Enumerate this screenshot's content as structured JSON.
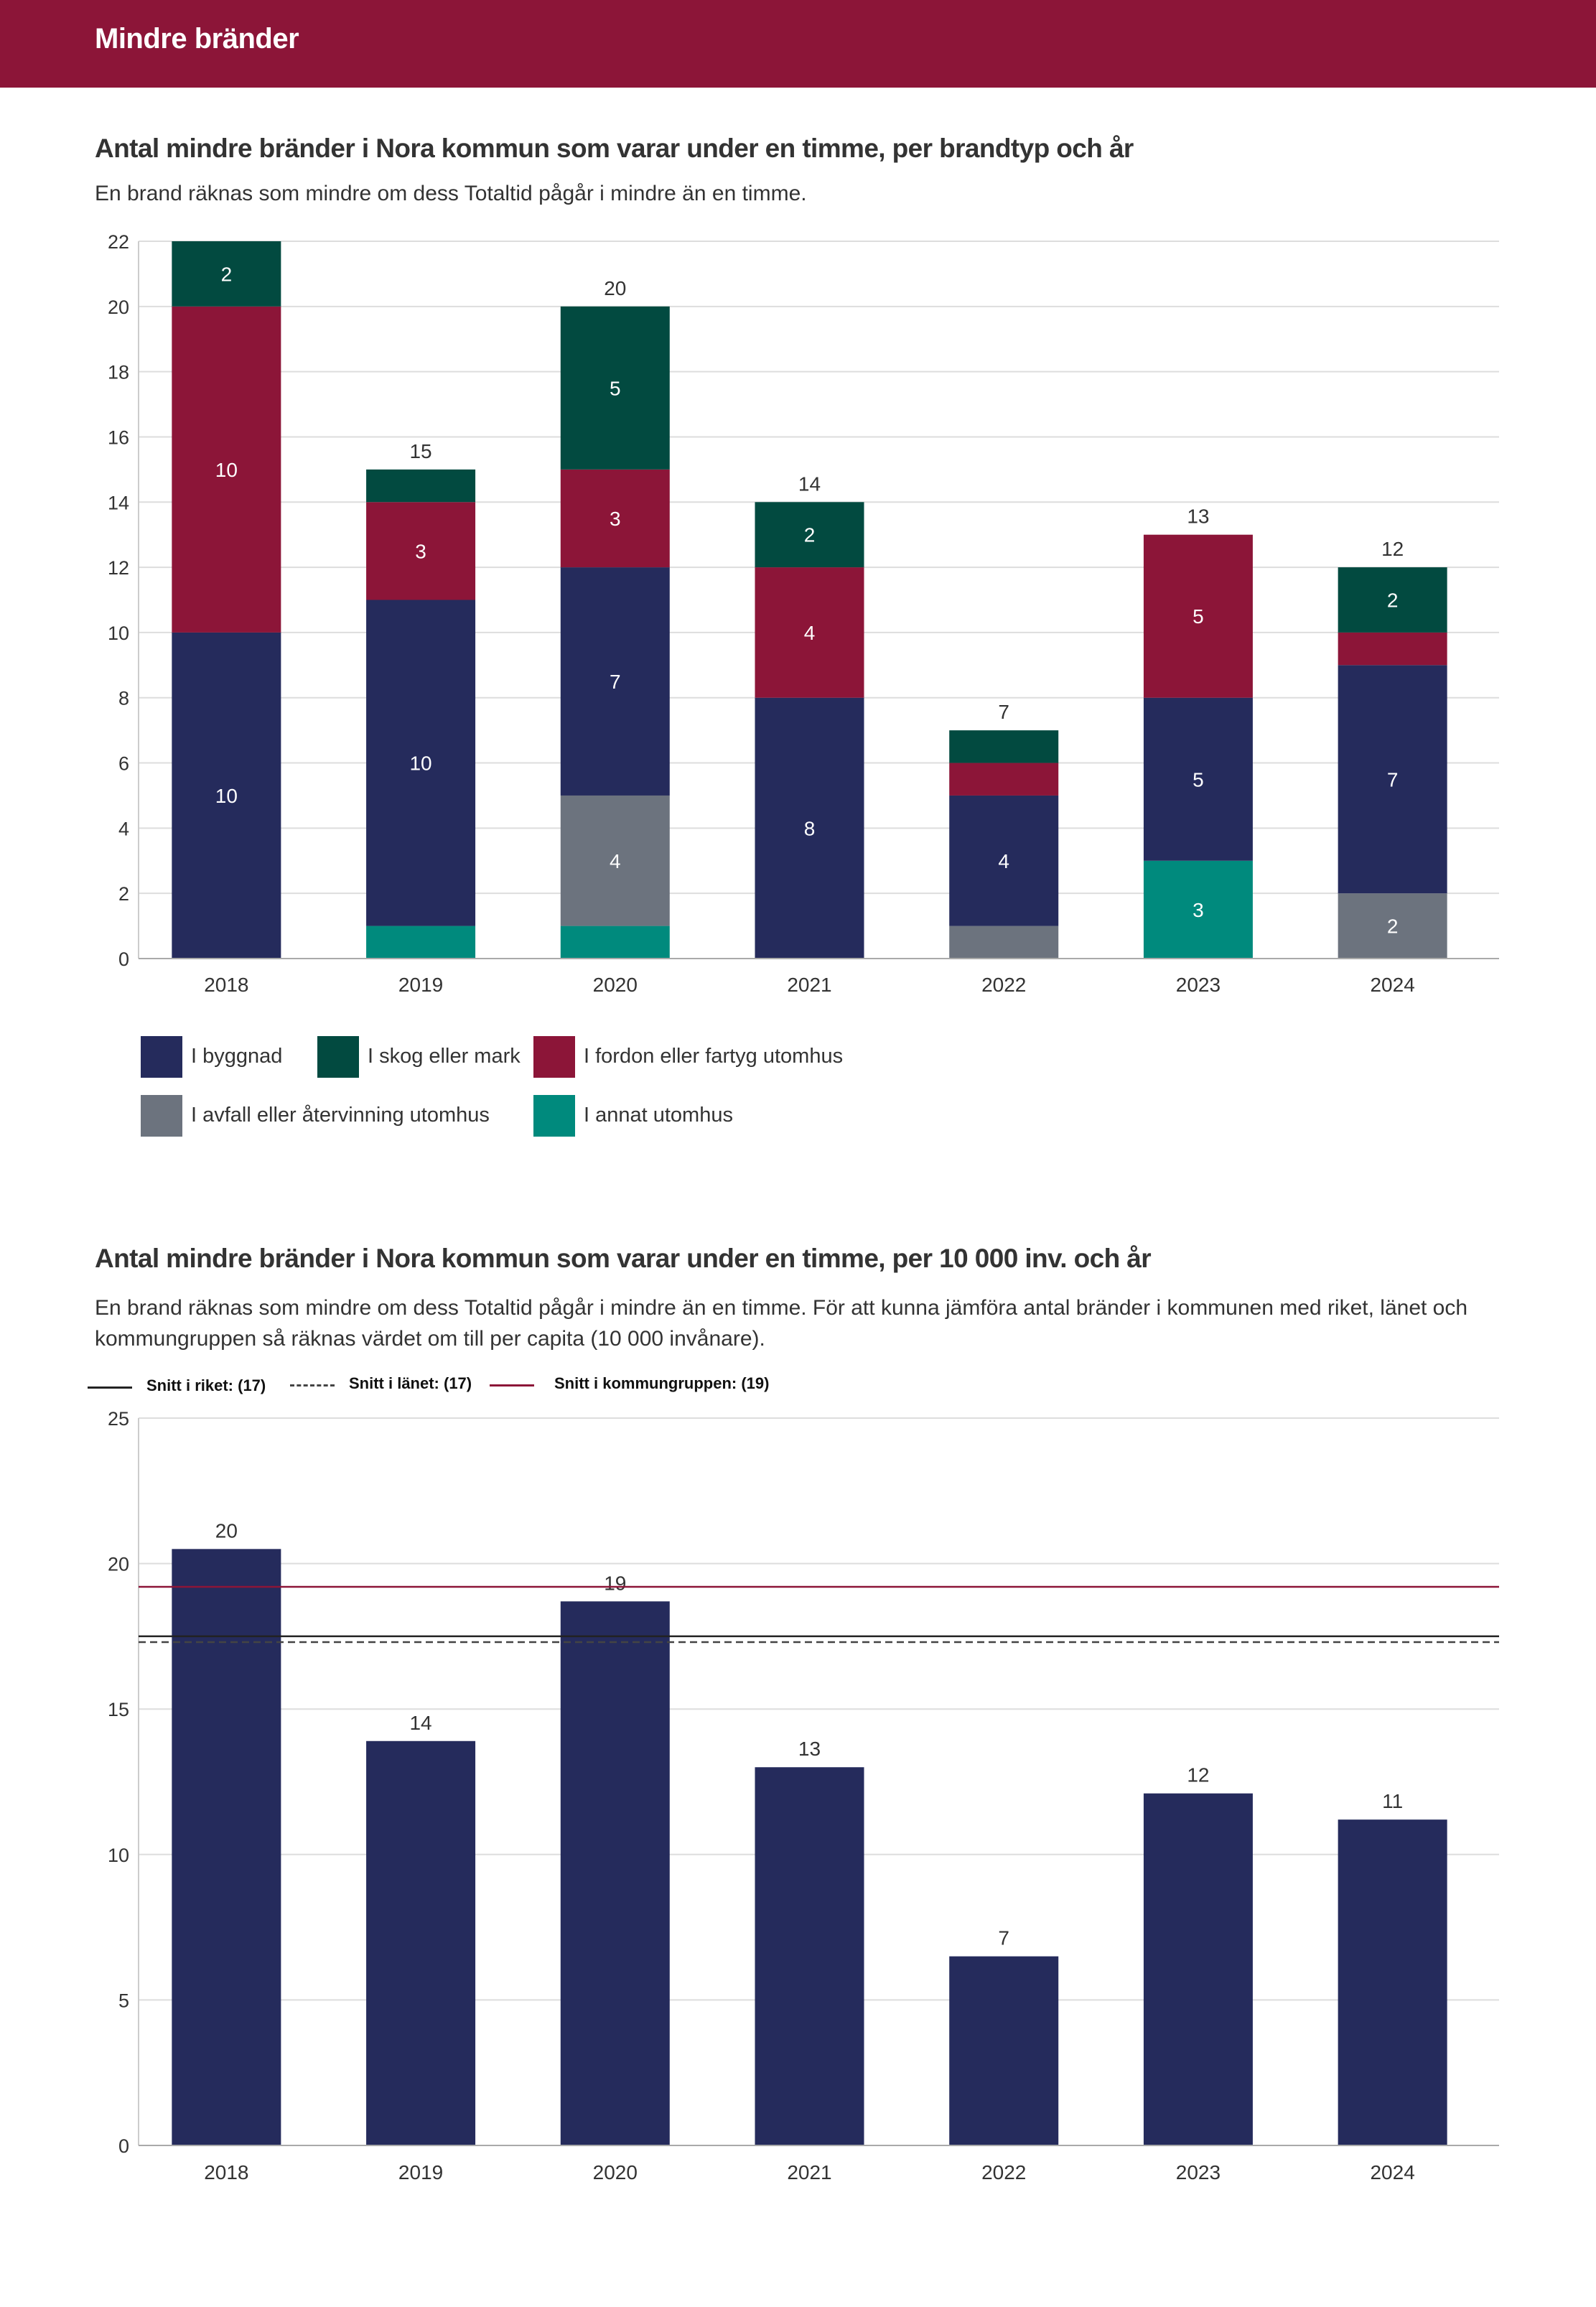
{
  "header": {
    "title": "Mindre bränder"
  },
  "colors": {
    "header_bg": "#8c1538",
    "i_byggnad": "#252b5c",
    "i_skog": "#024a40",
    "i_fordon": "#8c1538",
    "i_avfall": "#6c737e",
    "i_annat": "#008a7d",
    "riket_line": "#222222",
    "lanet_line": "#444444",
    "kommungrupp_line": "#8c1538"
  },
  "chart1": {
    "title": "Antal mindre bränder i Nora kommun som varar under en timme, per brandtyp och år",
    "subtitle": "En brand räknas som mindre om dess Totaltid pågår i mindre än en timme."
  },
  "chart2": {
    "title": "Antal mindre bränder i Nora kommun som varar under en timme, per 10 000 inv. och år",
    "subtitle": "En brand räknas som mindre om dess Totaltid pågår i mindre än en timme. För att kunna jämföra antal bränder i kommunen med riket, länet och kommungruppen så räknas värdet om till per capita (10 000 invånare).",
    "ref_labels": {
      "riket": "Snitt i riket: (17)",
      "lanet": "Snitt i länet: (17)",
      "kommungrupp": "Snitt i kommungruppen: (19)"
    }
  },
  "chart_data": [
    {
      "type": "bar",
      "stacked": true,
      "categories": [
        "2018",
        "2019",
        "2020",
        "2021",
        "2022",
        "2023",
        "2024"
      ],
      "series": [
        {
          "name": "I annat utomhus",
          "color": "#008a7d",
          "values": [
            0,
            1,
            1,
            0,
            0,
            3,
            0
          ],
          "labels": [
            "",
            "",
            "",
            "",
            "",
            "3",
            ""
          ]
        },
        {
          "name": "I avfall eller återvinning utomhus",
          "color": "#6c737e",
          "values": [
            0,
            0,
            4,
            0,
            1,
            0,
            2
          ],
          "labels": [
            "",
            "",
            "4",
            "",
            "",
            "",
            "2"
          ]
        },
        {
          "name": "I byggnad",
          "color": "#252b5c",
          "values": [
            10,
            10,
            7,
            8,
            4,
            5,
            7
          ],
          "labels": [
            "10",
            "10",
            "7",
            "8",
            "4",
            "5",
            "7"
          ]
        },
        {
          "name": "I fordon eller fartyg utomhus",
          "color": "#8c1538",
          "values": [
            10,
            3,
            3,
            4,
            1,
            5,
            1
          ],
          "labels": [
            "10",
            "3",
            "3",
            "4",
            "",
            "5",
            ""
          ]
        },
        {
          "name": "I skog eller mark",
          "color": "#024a40",
          "values": [
            2,
            1,
            5,
            2,
            1,
            0,
            2
          ],
          "labels": [
            "2",
            "",
            "5",
            "2",
            "",
            "",
            "2"
          ]
        }
      ],
      "totals": [
        "",
        "15",
        "20",
        "14",
        "7",
        "13",
        "12"
      ],
      "ylim": [
        0,
        22
      ],
      "yticks": [
        "0",
        "2",
        "4",
        "6",
        "8",
        "10",
        "12",
        "14",
        "16",
        "18",
        "20",
        "22"
      ],
      "legend_rows": [
        [
          "I byggnad",
          "I skog eller mark",
          "I fordon eller fartyg utomhus"
        ],
        [
          "I avfall eller återvinning utomhus",
          "I annat utomhus"
        ]
      ],
      "legend_position": "bottom",
      "grid": true
    },
    {
      "type": "bar",
      "categories": [
        "2018",
        "2019",
        "2020",
        "2021",
        "2022",
        "2023",
        "2024"
      ],
      "values": [
        20.5,
        13.9,
        18.7,
        13.0,
        6.5,
        12.1,
        11.2
      ],
      "labels": [
        "20",
        "14",
        "19",
        "13",
        "7",
        "12",
        "11"
      ],
      "color": "#252b5c",
      "reference_lines": [
        {
          "name": "Snitt i riket",
          "value": 17.5,
          "style": "solid",
          "color": "#222222"
        },
        {
          "name": "Snitt i länet",
          "value": 17.3,
          "style": "dashed",
          "color": "#444444"
        },
        {
          "name": "Snitt i kommungruppen",
          "value": 19.2,
          "style": "solid",
          "color": "#8c1538"
        }
      ],
      "ylim": [
        0,
        25
      ],
      "yticks": [
        "0",
        "5",
        "10",
        "15",
        "20",
        "25"
      ],
      "legend_position": "top",
      "grid": true
    }
  ]
}
